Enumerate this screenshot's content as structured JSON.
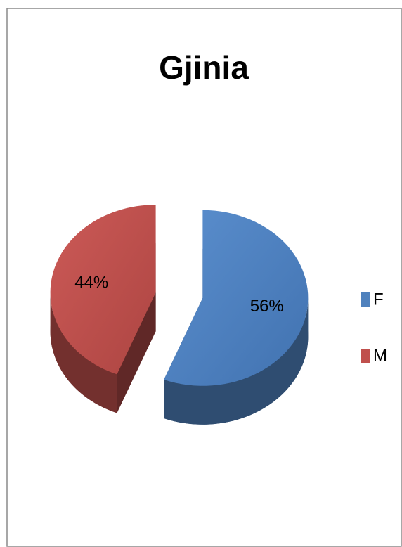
{
  "chart_data": {
    "type": "pie",
    "title": "Gjinia",
    "categories": [
      "F",
      "M"
    ],
    "values": [
      56,
      44
    ],
    "value_labels": [
      "56%",
      "44%"
    ],
    "colors": [
      "#4f81bd",
      "#c0504d"
    ],
    "legend": "right"
  }
}
